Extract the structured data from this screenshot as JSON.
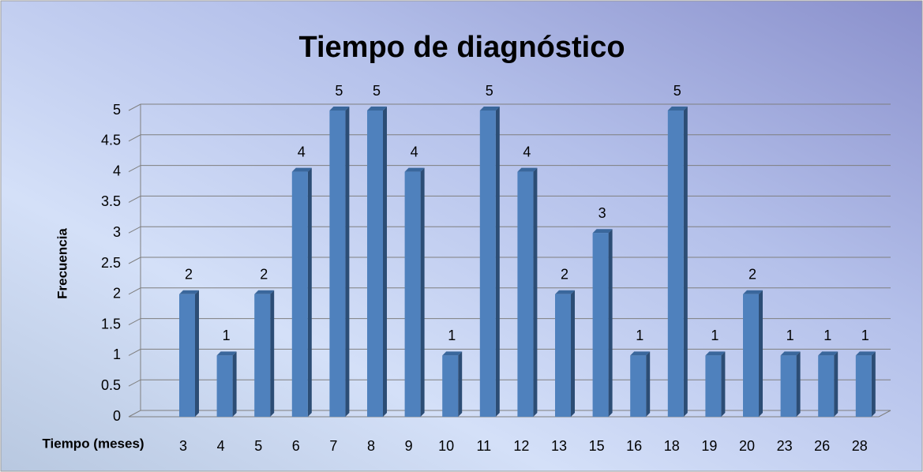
{
  "chart_data": {
    "type": "bar",
    "title": "Tiempo de diagnóstico",
    "x_label": "Tiempo (meses)",
    "y_label": "Frecuencia",
    "categories": [
      "3",
      "4",
      "5",
      "6",
      "7",
      "8",
      "9",
      "10",
      "11",
      "12",
      "13",
      "15",
      "16",
      "18",
      "19",
      "20",
      "23",
      "26",
      "28"
    ],
    "values": [
      2,
      1,
      2,
      4,
      5,
      5,
      4,
      1,
      5,
      4,
      2,
      3,
      1,
      5,
      1,
      2,
      1,
      1,
      1
    ],
    "color": "#4f81bd",
    "ylim": [
      0,
      5
    ],
    "yticks": [
      0,
      0.5,
      1,
      1.5,
      2,
      2.5,
      3,
      3.5,
      4,
      4.5,
      5
    ],
    "grid": true
  }
}
